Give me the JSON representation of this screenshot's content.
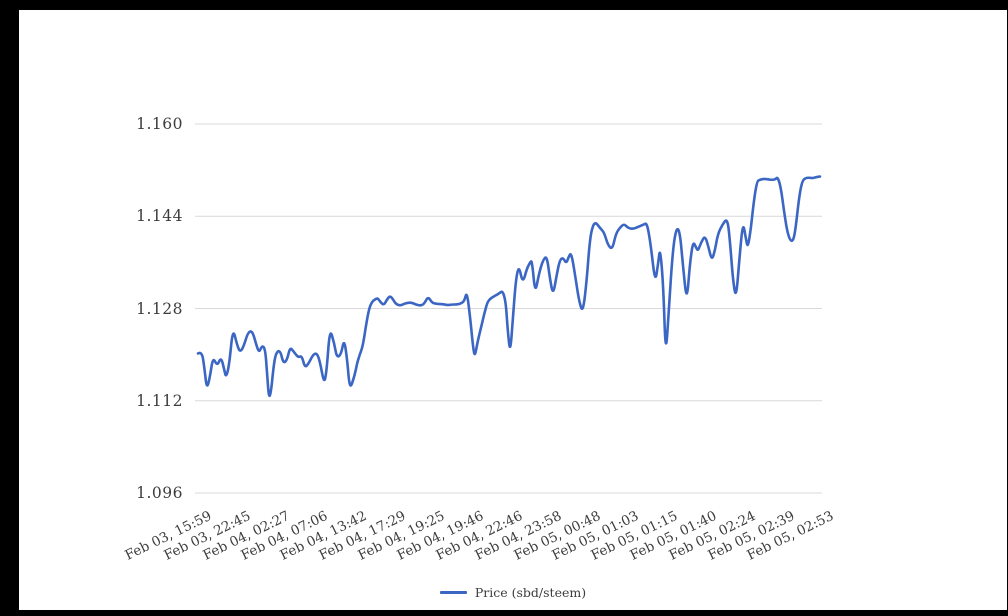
{
  "page": {
    "frame_color": "#000000",
    "canvas_color": "#ffffff"
  },
  "legend": {
    "label": "Price (sbd/steem)"
  },
  "chart_data": {
    "type": "line",
    "title": "",
    "series_name": "Price (sbd/steem)",
    "categories": [
      "Feb 03, 15:59",
      "Feb 03, 22:45",
      "Feb 04, 02:27",
      "Feb 04, 07:06",
      "Feb 04, 13:42",
      "Feb 04, 17:29",
      "Feb 04, 19:25",
      "Feb 04, 19:46",
      "Feb 04, 22:46",
      "Feb 04, 23:58",
      "Feb 05, 00:48",
      "Feb 05, 01:03",
      "Feb 05, 01:15",
      "Feb 05, 01:40",
      "Feb 05, 02:24",
      "Feb 05, 02:39",
      "Feb 05, 02:53"
    ],
    "yticks": [
      "1.160",
      "1.144",
      "1.128",
      "1.112",
      "1.096"
    ],
    "ylim": [
      1.096,
      1.16
    ],
    "grid": true,
    "legend_position": "bottom",
    "x_format": "fraction of x-axis span (0 = first tick, 1 = last tick)",
    "colors": {
      "line": "#3b66c4",
      "grid": "#d9d9d9",
      "text": "#3d3d3d"
    },
    "points": [
      [
        0.0,
        1.1202
      ],
      [
        0.006,
        1.1206
      ],
      [
        0.01,
        1.118
      ],
      [
        0.014,
        1.114
      ],
      [
        0.019,
        1.116
      ],
      [
        0.024,
        1.1196
      ],
      [
        0.031,
        1.118
      ],
      [
        0.037,
        1.1196
      ],
      [
        0.042,
        1.1175
      ],
      [
        0.045,
        1.116
      ],
      [
        0.05,
        1.118
      ],
      [
        0.056,
        1.1247
      ],
      [
        0.063,
        1.1216
      ],
      [
        0.068,
        1.1204
      ],
      [
        0.074,
        1.1216
      ],
      [
        0.08,
        1.1238
      ],
      [
        0.087,
        1.1242
      ],
      [
        0.093,
        1.122
      ],
      [
        0.098,
        1.1203
      ],
      [
        0.103,
        1.1216
      ],
      [
        0.108,
        1.121
      ],
      [
        0.111,
        1.117
      ],
      [
        0.114,
        1.1122
      ],
      [
        0.118,
        1.114
      ],
      [
        0.121,
        1.1175
      ],
      [
        0.125,
        1.1203
      ],
      [
        0.132,
        1.1208
      ],
      [
        0.137,
        1.1185
      ],
      [
        0.143,
        1.119
      ],
      [
        0.148,
        1.1213
      ],
      [
        0.154,
        1.1205
      ],
      [
        0.161,
        1.1195
      ],
      [
        0.167,
        1.1198
      ],
      [
        0.172,
        1.1177
      ],
      [
        0.178,
        1.1185
      ],
      [
        0.185,
        1.12
      ],
      [
        0.191,
        1.1203
      ],
      [
        0.196,
        1.1188
      ],
      [
        0.203,
        1.1148
      ],
      [
        0.207,
        1.1175
      ],
      [
        0.212,
        1.1246
      ],
      [
        0.219,
        1.122
      ],
      [
        0.223,
        1.1195
      ],
      [
        0.23,
        1.12
      ],
      [
        0.235,
        1.1228
      ],
      [
        0.24,
        1.119
      ],
      [
        0.244,
        1.1139
      ],
      [
        0.251,
        1.116
      ],
      [
        0.256,
        1.1186
      ],
      [
        0.26,
        1.12
      ],
      [
        0.265,
        1.1215
      ],
      [
        0.27,
        1.125
      ],
      [
        0.275,
        1.128
      ],
      [
        0.28,
        1.1292
      ],
      [
        0.285,
        1.1296
      ],
      [
        0.289,
        1.1298
      ],
      [
        0.294,
        1.129
      ],
      [
        0.299,
        1.1286
      ],
      [
        0.304,
        1.1296
      ],
      [
        0.309,
        1.1302
      ],
      [
        0.314,
        1.1295
      ],
      [
        0.318,
        1.1288
      ],
      [
        0.325,
        1.1285
      ],
      [
        0.331,
        1.1288
      ],
      [
        0.338,
        1.129
      ],
      [
        0.344,
        1.129
      ],
      [
        0.35,
        1.1287
      ],
      [
        0.357,
        1.1285
      ],
      [
        0.363,
        1.1287
      ],
      [
        0.37,
        1.1301
      ],
      [
        0.376,
        1.129
      ],
      [
        0.383,
        1.1288
      ],
      [
        0.389,
        1.1288
      ],
      [
        0.396,
        1.1287
      ],
      [
        0.402,
        1.1286
      ],
      [
        0.408,
        1.1287
      ],
      [
        0.415,
        1.1287
      ],
      [
        0.421,
        1.1288
      ],
      [
        0.428,
        1.1292
      ],
      [
        0.432,
        1.131
      ],
      [
        0.437,
        1.127
      ],
      [
        0.442,
        1.1215
      ],
      [
        0.445,
        1.1195
      ],
      [
        0.45,
        1.1225
      ],
      [
        0.455,
        1.1247
      ],
      [
        0.46,
        1.127
      ],
      [
        0.465,
        1.129
      ],
      [
        0.469,
        1.1296
      ],
      [
        0.474,
        1.13
      ],
      [
        0.479,
        1.1303
      ],
      [
        0.484,
        1.1306
      ],
      [
        0.49,
        1.1311
      ],
      [
        0.495,
        1.129
      ],
      [
        0.498,
        1.124
      ],
      [
        0.502,
        1.1202
      ],
      [
        0.506,
        1.126
      ],
      [
        0.511,
        1.133
      ],
      [
        0.516,
        1.1355
      ],
      [
        0.522,
        1.1323
      ],
      [
        0.529,
        1.135
      ],
      [
        0.534,
        1.136
      ],
      [
        0.537,
        1.1363
      ],
      [
        0.542,
        1.1305
      ],
      [
        0.548,
        1.134
      ],
      [
        0.555,
        1.1365
      ],
      [
        0.561,
        1.1371
      ],
      [
        0.566,
        1.133
      ],
      [
        0.571,
        1.1303
      ],
      [
        0.577,
        1.134
      ],
      [
        0.582,
        1.1365
      ],
      [
        0.587,
        1.1368
      ],
      [
        0.592,
        1.1358
      ],
      [
        0.596,
        1.137
      ],
      [
        0.6,
        1.1377
      ],
      [
        0.606,
        1.134
      ],
      [
        0.613,
        1.129
      ],
      [
        0.619,
        1.1273
      ],
      [
        0.625,
        1.133
      ],
      [
        0.63,
        1.14
      ],
      [
        0.635,
        1.1425
      ],
      [
        0.64,
        1.1429
      ],
      [
        0.646,
        1.142
      ],
      [
        0.653,
        1.1412
      ],
      [
        0.659,
        1.139
      ],
      [
        0.666,
        1.1382
      ],
      [
        0.672,
        1.141
      ],
      [
        0.678,
        1.142
      ],
      [
        0.685,
        1.1427
      ],
      [
        0.691,
        1.142
      ],
      [
        0.698,
        1.1418
      ],
      [
        0.704,
        1.142
      ],
      [
        0.711,
        1.1423
      ],
      [
        0.717,
        1.1426
      ],
      [
        0.722,
        1.1428
      ],
      [
        0.728,
        1.139
      ],
      [
        0.735,
        1.1323
      ],
      [
        0.74,
        1.136
      ],
      [
        0.743,
        1.1386
      ],
      [
        0.748,
        1.132
      ],
      [
        0.752,
        1.1194
      ],
      [
        0.757,
        1.128
      ],
      [
        0.764,
        1.139
      ],
      [
        0.77,
        1.1422
      ],
      [
        0.775,
        1.141
      ],
      [
        0.78,
        1.135
      ],
      [
        0.786,
        1.129
      ],
      [
        0.791,
        1.136
      ],
      [
        0.796,
        1.1397
      ],
      [
        0.801,
        1.1385
      ],
      [
        0.804,
        1.138
      ],
      [
        0.809,
        1.1395
      ],
      [
        0.815,
        1.1406
      ],
      [
        0.82,
        1.139
      ],
      [
        0.826,
        1.1363
      ],
      [
        0.831,
        1.138
      ],
      [
        0.836,
        1.141
      ],
      [
        0.843,
        1.1425
      ],
      [
        0.851,
        1.1437
      ],
      [
        0.855,
        1.14
      ],
      [
        0.86,
        1.133
      ],
      [
        0.865,
        1.1296
      ],
      [
        0.87,
        1.136
      ],
      [
        0.876,
        1.1432
      ],
      [
        0.881,
        1.14
      ],
      [
        0.884,
        1.1385
      ],
      [
        0.889,
        1.142
      ],
      [
        0.894,
        1.147
      ],
      [
        0.899,
        1.1501
      ],
      [
        0.903,
        1.1503
      ],
      [
        0.91,
        1.1505
      ],
      [
        0.916,
        1.1504
      ],
      [
        0.923,
        1.1503
      ],
      [
        0.928,
        1.1504
      ],
      [
        0.932,
        1.1508
      ],
      [
        0.937,
        1.149
      ],
      [
        0.942,
        1.145
      ],
      [
        0.947,
        1.1415
      ],
      [
        0.952,
        1.1398
      ],
      [
        0.957,
        1.1397
      ],
      [
        0.961,
        1.142
      ],
      [
        0.966,
        1.147
      ],
      [
        0.971,
        1.15
      ],
      [
        0.976,
        1.1506
      ],
      [
        0.982,
        1.1507
      ],
      [
        0.989,
        1.1506
      ],
      [
        0.994,
        1.1508
      ],
      [
        1.0,
        1.1509
      ]
    ]
  }
}
